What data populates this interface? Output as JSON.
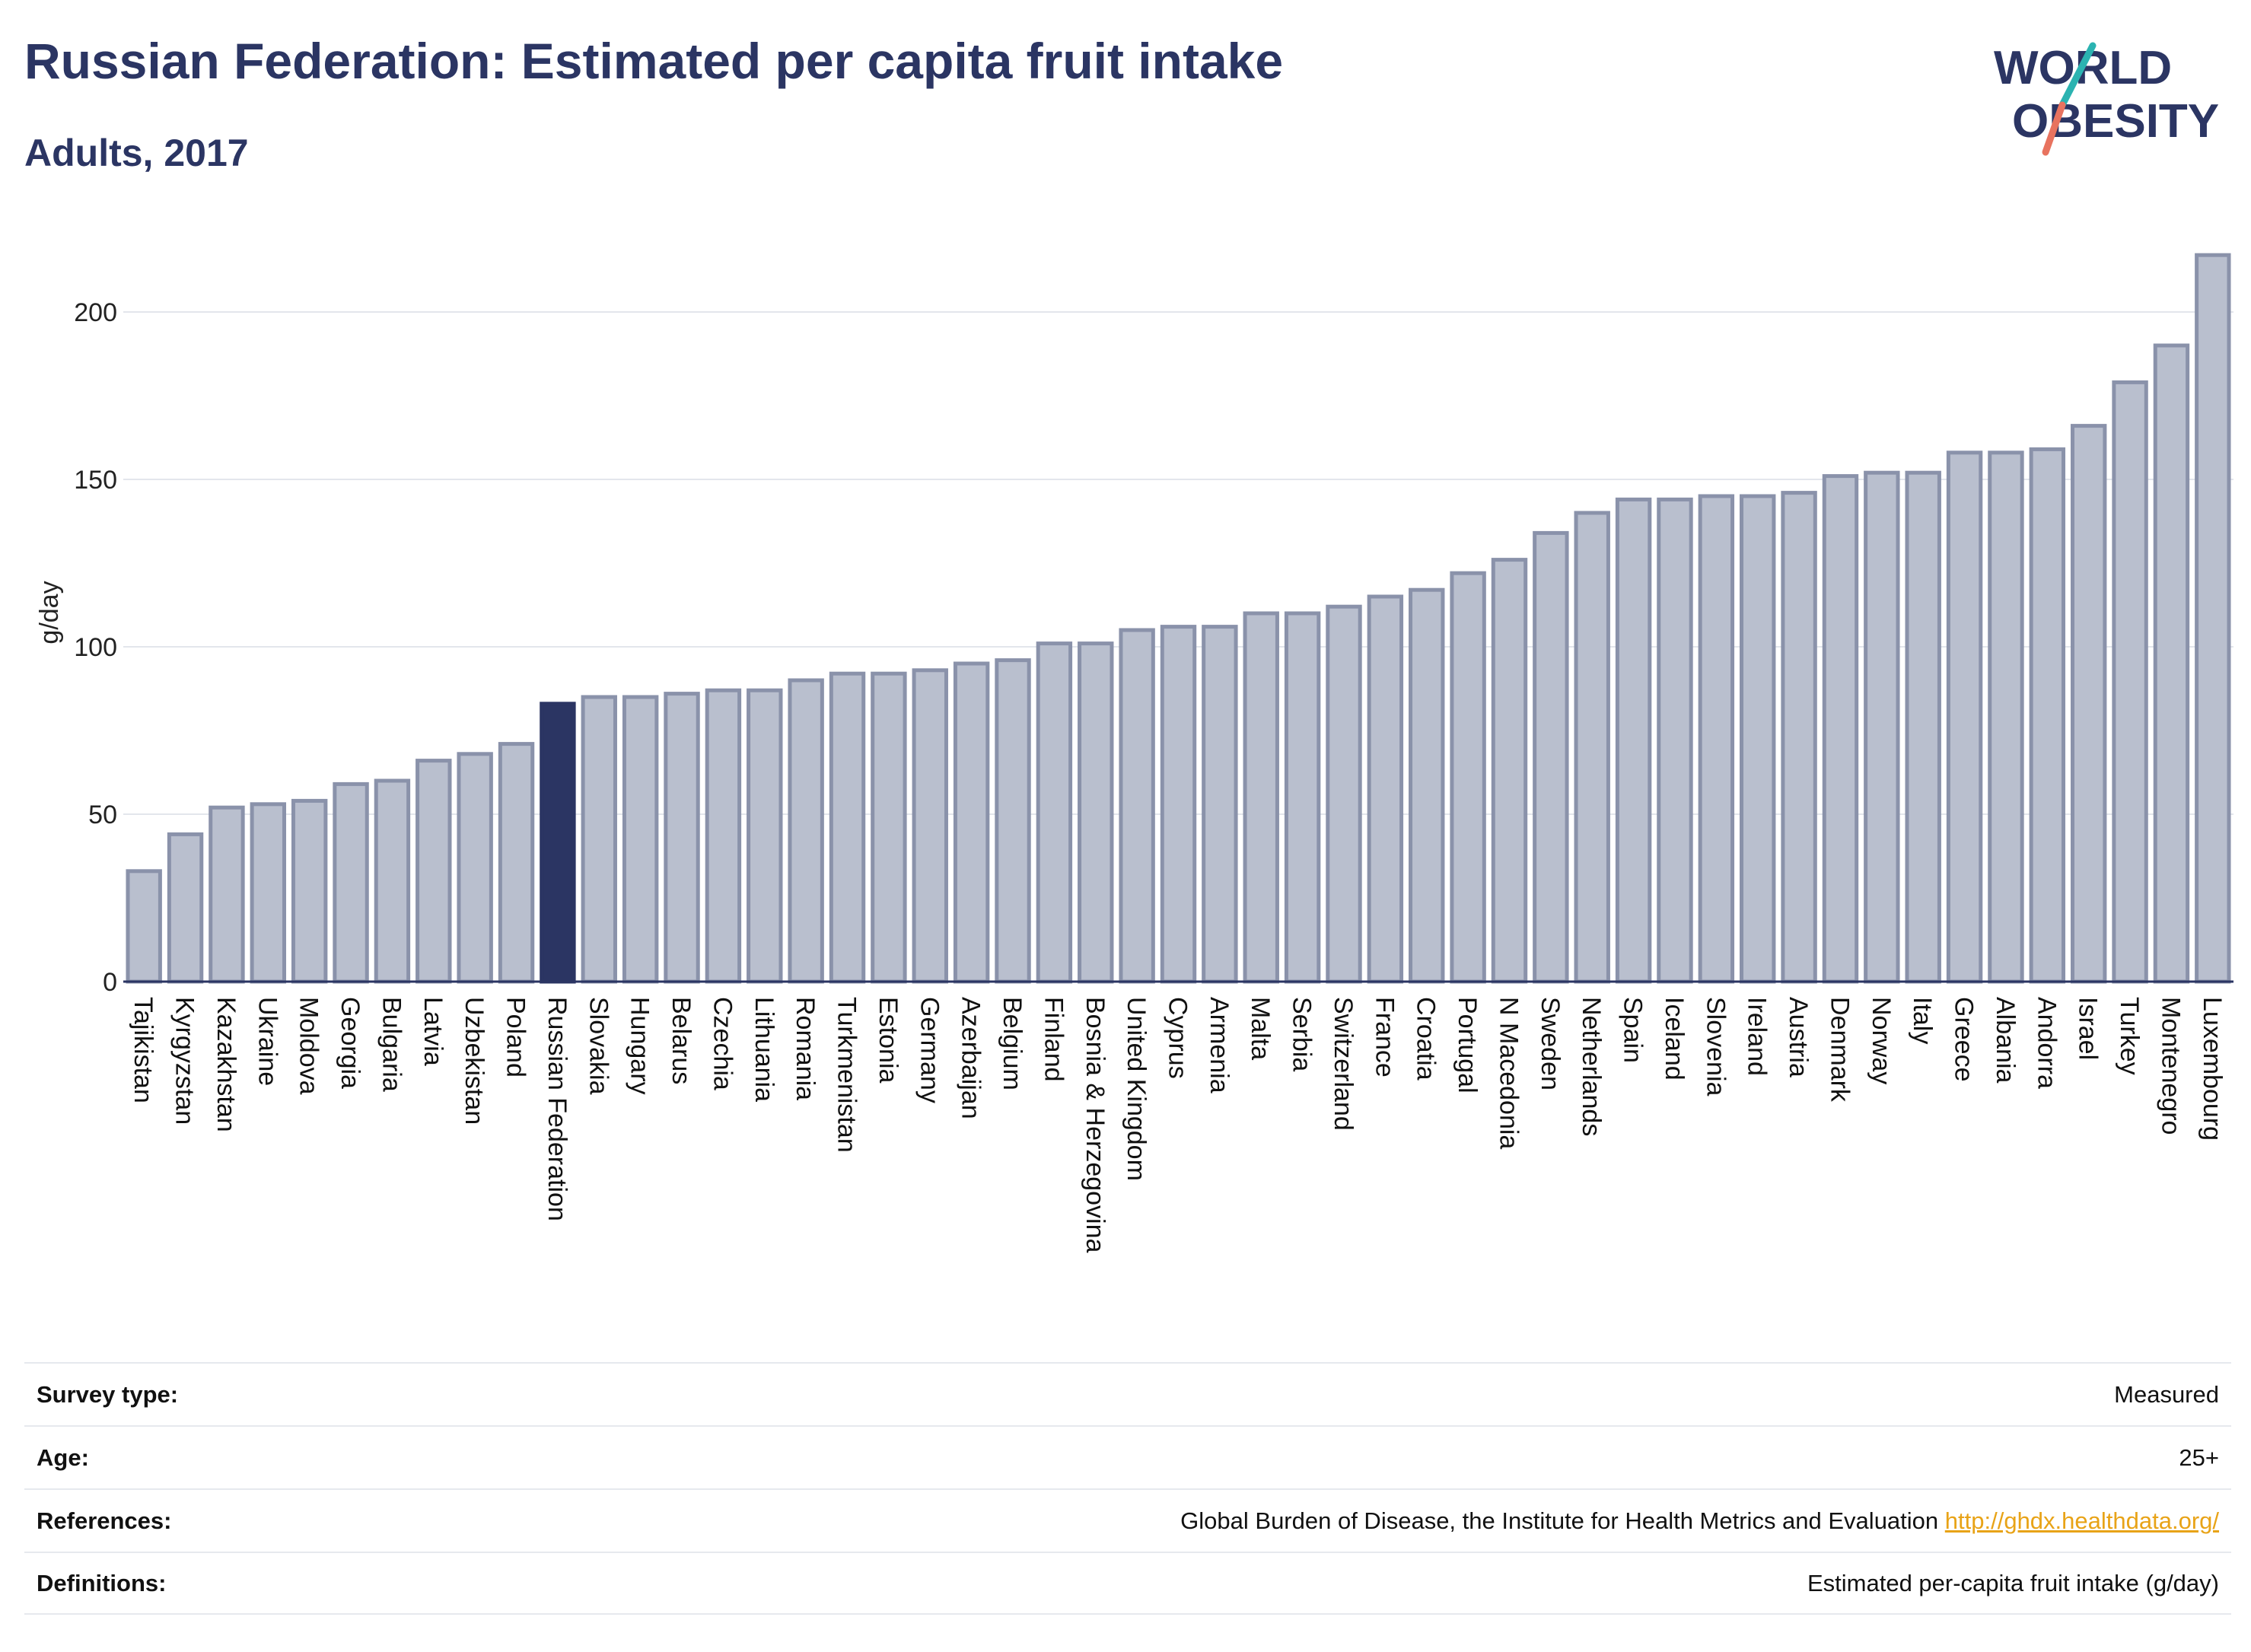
{
  "header": {
    "title": "Russian Federation: Estimated per capita fruit intake",
    "subtitle": "Adults, 2017"
  },
  "logo": {
    "line1": "WORLD",
    "line2": "OBESITY"
  },
  "colors": {
    "highlight": "#2b3563",
    "bar_fill": "#b9bfce",
    "bar_stroke": "#8a92aa",
    "logo_teal": "#2bb3b1",
    "logo_coral": "#e8735f",
    "link": "#e8a317"
  },
  "chart_data": {
    "type": "bar",
    "title": "Russian Federation: Estimated per capita fruit intake",
    "subtitle": "Adults, 2017",
    "ylabel": "g/day",
    "xlabel": "",
    "ylim": [
      0,
      225
    ],
    "yticks": [
      0,
      50,
      100,
      150,
      200
    ],
    "grid": true,
    "highlight": "Russian Federation",
    "categories": [
      "Tajikistan",
      "Kyrgyzstan",
      "Kazakhstan",
      "Ukraine",
      "Moldova",
      "Georgia",
      "Bulgaria",
      "Latvia",
      "Uzbekistan",
      "Poland",
      "Russian Federation",
      "Slovakia",
      "Hungary",
      "Belarus",
      "Czechia",
      "Lithuania",
      "Romania",
      "Turkmenistan",
      "Estonia",
      "Germany",
      "Azerbaijan",
      "Belgium",
      "Finland",
      "Bosnia & Herzegovina",
      "United Kingdom",
      "Cyprus",
      "Armenia",
      "Malta",
      "Serbia",
      "Switzerland",
      "France",
      "Croatia",
      "Portugal",
      "N Macedonia",
      "Sweden",
      "Netherlands",
      "Spain",
      "Iceland",
      "Slovenia",
      "Ireland",
      "Austria",
      "Denmark",
      "Norway",
      "Italy",
      "Greece",
      "Albania",
      "Andorra",
      "Israel",
      "Turkey",
      "Montenegro",
      "Luxembourg"
    ],
    "values": [
      33,
      44,
      52,
      53,
      54,
      59,
      60,
      66,
      68,
      71,
      83,
      85,
      85,
      86,
      87,
      87,
      90,
      92,
      92,
      93,
      95,
      96,
      101,
      101,
      105,
      106,
      106,
      110,
      110,
      112,
      115,
      117,
      122,
      126,
      134,
      140,
      144,
      144,
      145,
      145,
      146,
      151,
      152,
      152,
      158,
      158,
      159,
      166,
      179,
      190,
      217
    ]
  },
  "info": [
    {
      "label": "Survey type:",
      "value": "Measured"
    },
    {
      "label": "Age:",
      "value": "25+"
    },
    {
      "label": "References:",
      "value": "Global Burden of Disease, the Institute for Health Metrics and Evaluation",
      "link": "http://ghdx.healthdata.org/"
    },
    {
      "label": "Definitions:",
      "value": "Estimated per-capita fruit intake (g/day)"
    }
  ]
}
